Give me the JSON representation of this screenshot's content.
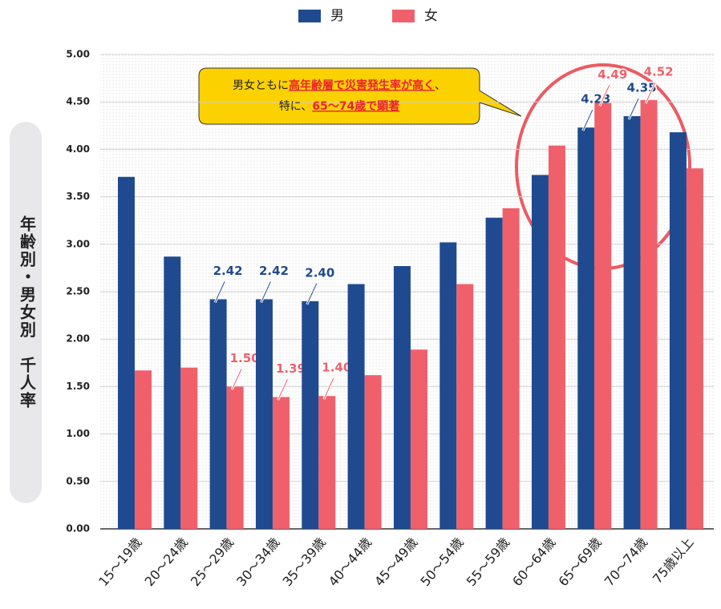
{
  "chart_data": {
    "type": "bar",
    "y_axis_label": "年齢別・男女別　千人率",
    "categories": [
      "15～19歳",
      "20～24歳",
      "25～29歳",
      "30～34歳",
      "35～39歳",
      "40～44歳",
      "45～49歳",
      "50～54歳",
      "55～59歳",
      "60～64歳",
      "65～69歳",
      "70～74歳",
      "75歳以上"
    ],
    "series": [
      {
        "name": "男",
        "color": "#1f4a8f",
        "values": [
          3.71,
          2.87,
          2.42,
          2.42,
          2.4,
          2.58,
          2.77,
          3.02,
          3.28,
          3.73,
          4.23,
          4.35,
          4.18
        ],
        "value_labels": [
          null,
          null,
          "2.42",
          "2.42",
          "2.40",
          null,
          null,
          null,
          null,
          null,
          "4.23",
          "4.35",
          null
        ]
      },
      {
        "name": "女",
        "color": "#f0606b",
        "values": [
          1.67,
          1.7,
          1.5,
          1.39,
          1.4,
          1.62,
          1.89,
          2.58,
          3.38,
          4.04,
          4.49,
          4.52,
          3.8
        ],
        "value_labels": [
          null,
          null,
          "1.50",
          "1.39",
          "1.40",
          null,
          null,
          null,
          null,
          null,
          "4.49",
          "4.52",
          null
        ]
      }
    ],
    "ylim": [
      0,
      5
    ],
    "yticks": [
      {
        "value": 0,
        "label": "0.00"
      },
      {
        "value": 0.5,
        "label": "0.50"
      },
      {
        "value": 1,
        "label": "1.00"
      },
      {
        "value": 1.5,
        "label": "1.50"
      },
      {
        "value": 2,
        "label": "2.00"
      },
      {
        "value": 2.5,
        "label": "2.50"
      },
      {
        "value": 3,
        "label": "3.00"
      },
      {
        "value": 3.5,
        "label": "3.50"
      },
      {
        "value": 4,
        "label": "4.00"
      },
      {
        "value": 4.5,
        "label": "4.50"
      },
      {
        "value": 5,
        "label": "5.00"
      }
    ],
    "grid": true,
    "legend": "top",
    "annotation": {
      "lines": [
        [
          {
            "text": "男女ともに"
          },
          {
            "text": "高年齢層で災害発生率が高く",
            "highlight": true
          },
          {
            "text": "、"
          }
        ],
        [
          {
            "text": "特に、"
          },
          {
            "text": "65～74歳で顕著",
            "highlight": true
          }
        ]
      ]
    }
  }
}
